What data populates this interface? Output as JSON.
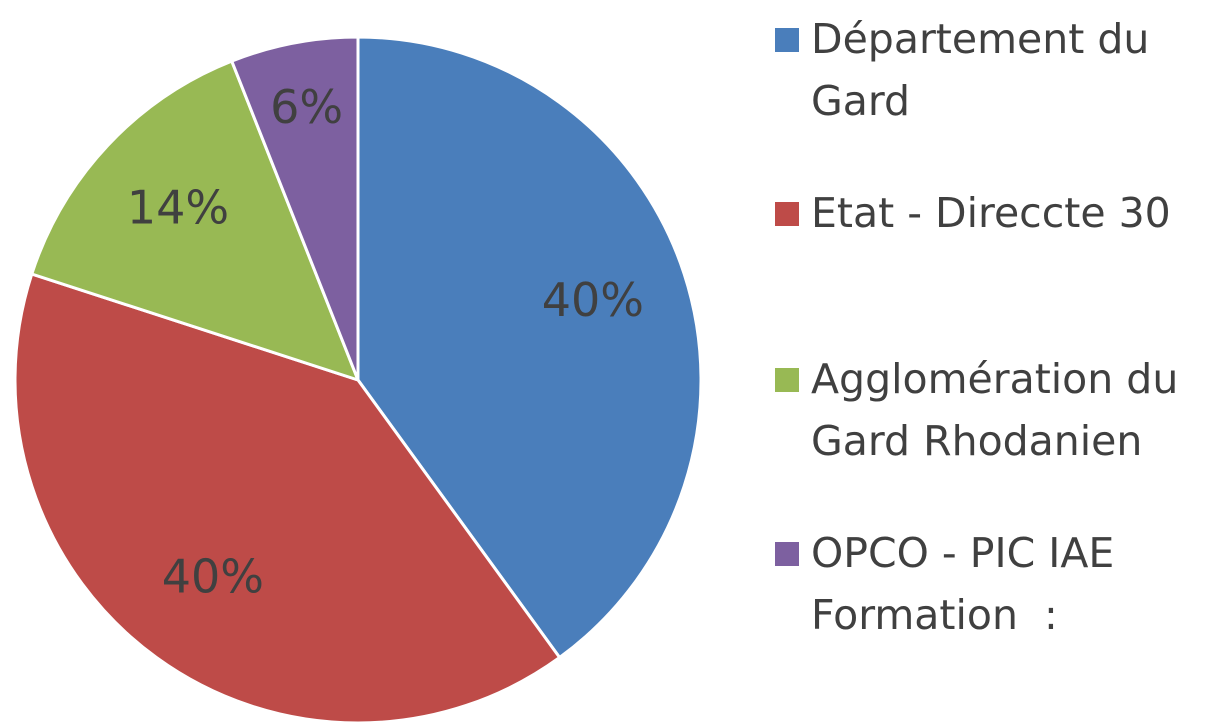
{
  "chart_data": {
    "type": "pie",
    "categories": [
      "Département du Gard",
      "Etat - Direccte 30",
      "Agglomération du Gard Rhodanien",
      "OPCO - PIC IAE Formation  :"
    ],
    "values": [
      40,
      40,
      14,
      6
    ],
    "value_labels": [
      "40%",
      "40%",
      "14%",
      "6%"
    ],
    "colors": [
      "#4a7ebb",
      "#be4b48",
      "#98b954",
      "#7d60a0"
    ],
    "legend": "right"
  }
}
